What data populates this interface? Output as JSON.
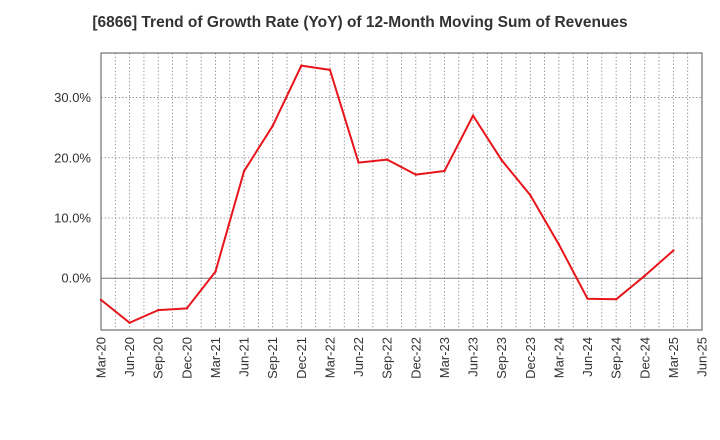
{
  "chart_data": {
    "type": "line",
    "title": "[6866]  Trend of Growth Rate (YoY) of 12-Month Moving Sum of Revenues",
    "xlabel": "",
    "ylabel": "",
    "categories": [
      "Mar-20",
      "Jun-20",
      "Sep-20",
      "Dec-20",
      "Mar-21",
      "Jun-21",
      "Sep-21",
      "Dec-21",
      "Mar-22",
      "Jun-22",
      "Sep-22",
      "Dec-22",
      "Mar-23",
      "Jun-23",
      "Sep-23",
      "Dec-23",
      "Mar-24",
      "Jun-24",
      "Sep-24",
      "Dec-24",
      "Mar-25",
      "Jun-25"
    ],
    "series": [
      {
        "name": "",
        "color": "#e8141b",
        "values": [
          -3.6,
          -7.4,
          -5.3,
          -5.0,
          1.1,
          17.8,
          25.3,
          35.3,
          34.6,
          19.2,
          19.7,
          17.2,
          17.8,
          27.0,
          19.6,
          13.8,
          5.6,
          -3.4,
          -3.5,
          0.4,
          4.6,
          null
        ]
      }
    ],
    "y_ticks": [
      "30.0%",
      "20.0%",
      "10.0%",
      "0.0%"
    ],
    "ylim": [
      -8.6,
      37.4
    ],
    "grid": true,
    "legend": "none"
  }
}
